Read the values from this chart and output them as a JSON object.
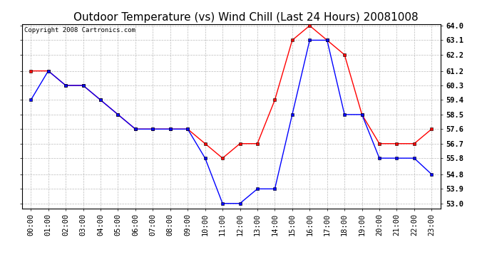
{
  "title": "Outdoor Temperature (vs) Wind Chill (Last 24 Hours) 20081008",
  "copyright": "Copyright 2008 Cartronics.com",
  "x_labels": [
    "00:00",
    "01:00",
    "02:00",
    "03:00",
    "04:00",
    "05:00",
    "06:00",
    "07:00",
    "08:00",
    "09:00",
    "10:00",
    "11:00",
    "12:00",
    "13:00",
    "14:00",
    "15:00",
    "16:00",
    "17:00",
    "18:00",
    "19:00",
    "20:00",
    "21:00",
    "22:00",
    "23:00"
  ],
  "temp_red": [
    61.2,
    61.2,
    60.3,
    60.3,
    59.4,
    58.5,
    57.6,
    57.6,
    57.6,
    57.6,
    56.7,
    55.8,
    56.7,
    56.7,
    59.4,
    63.1,
    64.0,
    63.1,
    62.2,
    58.5,
    56.7,
    56.7,
    56.7,
    57.6
  ],
  "wind_blue": [
    59.4,
    61.2,
    60.3,
    60.3,
    59.4,
    58.5,
    57.6,
    57.6,
    57.6,
    57.6,
    55.8,
    53.0,
    53.0,
    53.9,
    53.9,
    58.5,
    63.1,
    63.1,
    58.5,
    58.5,
    55.8,
    55.8,
    55.8,
    54.8
  ],
  "ylim_min": 53.0,
  "ylim_max": 64.0,
  "yticks": [
    53.0,
    53.9,
    54.8,
    55.8,
    56.7,
    57.6,
    58.5,
    59.4,
    60.3,
    61.2,
    62.2,
    63.1,
    64.0
  ],
  "bg_color": "#ffffff",
  "grid_color": "#bbbbbb",
  "red_color": "#ff0000",
  "blue_color": "#0000ff",
  "title_color": "#000000",
  "title_fontsize": 11,
  "copyright_fontsize": 6.5,
  "tick_label_fontsize": 7.5,
  "marker_size": 3,
  "line_width": 1.0
}
